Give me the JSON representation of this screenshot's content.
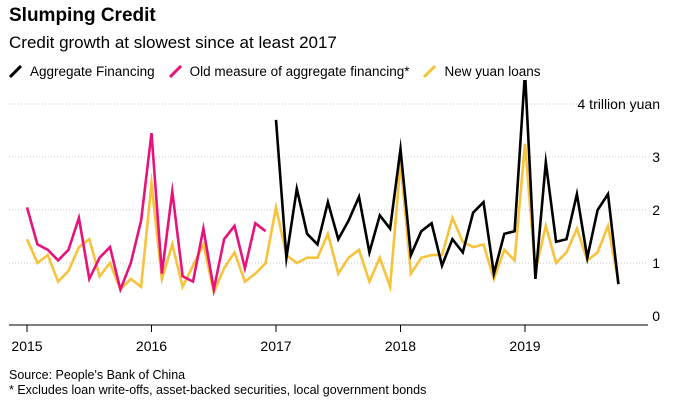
{
  "header": {
    "title": "Slumping Credit",
    "subtitle": "Credit growth at slowest since at least 2017"
  },
  "footer": {
    "source": "Source: People's Bank of China",
    "note": "* Excludes loan write-offs, asset-backed securities, local government bonds"
  },
  "chart_data": {
    "type": "line",
    "title": "Slumping Credit",
    "subtitle": "Credit growth at slowest since at least 2017",
    "x_axis": {
      "type": "date",
      "ticks": [
        "2015",
        "2016",
        "2017",
        "2018",
        "2019"
      ],
      "range": [
        "2014-12",
        "2020-01"
      ]
    },
    "y_axis": {
      "position": "right",
      "ticks": [
        "0",
        "1",
        "2",
        "3",
        "4 trillion yuan"
      ],
      "unit": "trillion yuan",
      "range": [
        0,
        4.5
      ]
    },
    "grid": "horizontal dotted",
    "legend": "top-left",
    "series": [
      {
        "name": "Aggregate Financing",
        "color": "#000000",
        "x": [
          "2017-01",
          "2017-02",
          "2017-03",
          "2017-04",
          "2017-05",
          "2017-06",
          "2017-07",
          "2017-08",
          "2017-09",
          "2017-10",
          "2017-11",
          "2017-12",
          "2018-01",
          "2018-02",
          "2018-03",
          "2018-04",
          "2018-05",
          "2018-06",
          "2018-07",
          "2018-08",
          "2018-09",
          "2018-10",
          "2018-11",
          "2018-12",
          "2019-01",
          "2019-02",
          "2019-03",
          "2019-04",
          "2019-05",
          "2019-06",
          "2019-07",
          "2019-08",
          "2019-09",
          "2019-10"
        ],
        "values": [
          3.7,
          1.1,
          2.4,
          1.55,
          1.35,
          2.15,
          1.45,
          1.8,
          2.25,
          1.2,
          1.9,
          1.65,
          3.15,
          1.15,
          1.6,
          1.75,
          0.95,
          1.45,
          1.2,
          1.95,
          2.15,
          0.8,
          1.55,
          1.6,
          4.6,
          0.7,
          2.9,
          1.4,
          1.45,
          2.3,
          1.1,
          2.0,
          2.3,
          0.6
        ]
      },
      {
        "name": "Old measure of aggregate financing*",
        "color": "#e6137c",
        "x": [
          "2015-01",
          "2015-02",
          "2015-03",
          "2015-04",
          "2015-05",
          "2015-06",
          "2015-07",
          "2015-08",
          "2015-09",
          "2015-10",
          "2015-11",
          "2015-12",
          "2016-01",
          "2016-02",
          "2016-03",
          "2016-04",
          "2016-05",
          "2016-06",
          "2016-07",
          "2016-08",
          "2016-09",
          "2016-10",
          "2016-11",
          "2016-12"
        ],
        "values": [
          2.05,
          1.35,
          1.25,
          1.05,
          1.25,
          1.85,
          0.7,
          1.1,
          1.3,
          0.5,
          1.0,
          1.8,
          3.45,
          0.8,
          2.35,
          0.75,
          0.65,
          1.65,
          0.5,
          1.45,
          1.7,
          0.9,
          1.75,
          1.6
        ]
      },
      {
        "name": "New yuan loans",
        "color": "#f7c23c",
        "x": [
          "2015-01",
          "2015-02",
          "2015-03",
          "2015-04",
          "2015-05",
          "2015-06",
          "2015-07",
          "2015-08",
          "2015-09",
          "2015-10",
          "2015-11",
          "2015-12",
          "2016-01",
          "2016-02",
          "2016-03",
          "2016-04",
          "2016-05",
          "2016-06",
          "2016-07",
          "2016-08",
          "2016-09",
          "2016-10",
          "2016-11",
          "2016-12",
          "2017-01",
          "2017-02",
          "2017-03",
          "2017-04",
          "2017-05",
          "2017-06",
          "2017-07",
          "2017-08",
          "2017-09",
          "2017-10",
          "2017-11",
          "2017-12",
          "2018-01",
          "2018-02",
          "2018-03",
          "2018-04",
          "2018-05",
          "2018-06",
          "2018-07",
          "2018-08",
          "2018-09",
          "2018-10",
          "2018-11",
          "2018-12",
          "2019-01",
          "2019-02",
          "2019-03",
          "2019-04",
          "2019-05",
          "2019-06",
          "2019-07",
          "2019-08",
          "2019-09",
          "2019-10"
        ],
        "values": [
          1.45,
          1.0,
          1.15,
          0.65,
          0.85,
          1.3,
          1.45,
          0.75,
          1.0,
          0.5,
          0.7,
          0.55,
          2.5,
          0.7,
          1.35,
          0.55,
          0.95,
          1.35,
          0.45,
          0.9,
          1.2,
          0.65,
          0.8,
          1.0,
          2.05,
          1.15,
          1.0,
          1.1,
          1.1,
          1.55,
          0.8,
          1.1,
          1.25,
          0.65,
          1.1,
          0.55,
          2.9,
          0.8,
          1.1,
          1.15,
          1.15,
          1.85,
          1.4,
          1.3,
          1.35,
          0.7,
          1.25,
          1.05,
          3.25,
          0.85,
          1.7,
          1.0,
          1.2,
          1.65,
          1.05,
          1.2,
          1.7,
          0.65
        ]
      }
    ]
  }
}
